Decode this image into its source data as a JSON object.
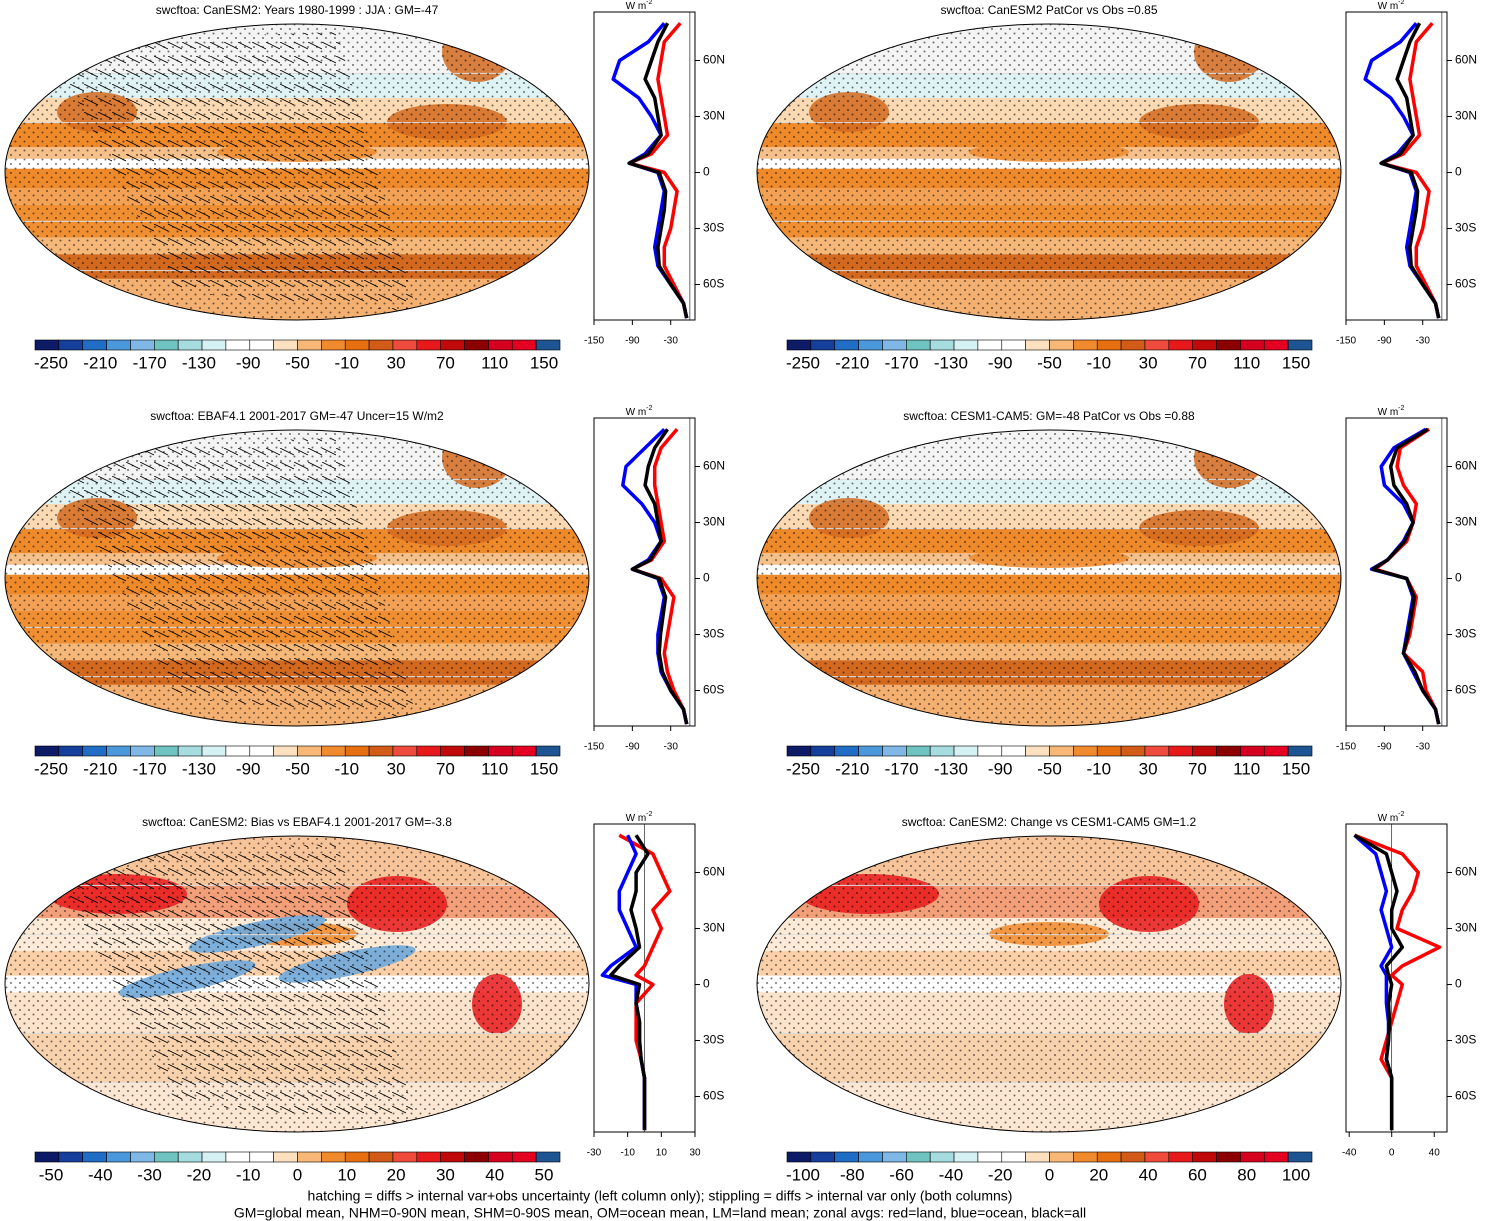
{
  "chart_data": [
    {
      "type": "line",
      "title": "swcftoa: CanESM2: Years 1980-1999 : JJA : GM=-47",
      "unit": "W m",
      "unit_sup": "-2",
      "colorbar_ticks": [
        -250,
        -210,
        -170,
        -130,
        -90,
        -50,
        -10,
        30,
        70,
        110,
        150
      ],
      "xlim": [
        -150,
        8
      ],
      "xticks": [
        -150,
        -90,
        -30
      ],
      "ylim": [
        -79,
        86
      ],
      "yticks": [
        {
          "value": 60,
          "label": "60N"
        },
        {
          "value": 30,
          "label": "30N"
        },
        0,
        {
          "value": -30,
          "label": "30S"
        },
        {
          "value": -60,
          "label": "60S"
        }
      ],
      "y": [
        80,
        70,
        60,
        50,
        40,
        30,
        20,
        10,
        5,
        0,
        -10,
        -20,
        -30,
        -40,
        -50,
        -60,
        -70,
        -78
      ],
      "series": [
        {
          "color": "#ff0000",
          "values": [
            -15,
            -40,
            -45,
            -50,
            -45,
            -40,
            -35,
            -60,
            -95,
            -40,
            -20,
            -25,
            -30,
            -40,
            -40,
            -25,
            -10,
            -5
          ]
        },
        {
          "color": "#0000ff",
          "values": [
            -40,
            -65,
            -110,
            -120,
            -80,
            -60,
            -45,
            -70,
            -95,
            -50,
            -40,
            -45,
            -50,
            -55,
            -50,
            -30,
            -10,
            -5
          ]
        },
        {
          "color": "#000000",
          "values": [
            -35,
            -50,
            -60,
            -70,
            -55,
            -50,
            -45,
            -65,
            -95,
            -48,
            -38,
            -40,
            -45,
            -50,
            -48,
            -30,
            -10,
            -5
          ]
        }
      ]
    },
    {
      "type": "line",
      "title": "swcftoa: CanESM2 PatCor vs Obs =0.85",
      "unit": "W m",
      "unit_sup": "-2",
      "colorbar_ticks": [
        -250,
        -210,
        -170,
        -130,
        -90,
        -50,
        -10,
        30,
        70,
        110,
        150
      ],
      "xlim": [
        -150,
        8
      ],
      "xticks": [
        -150,
        -90,
        -30
      ],
      "ylim": [
        -79,
        86
      ],
      "yticks": [
        {
          "value": 60,
          "label": "60N"
        },
        {
          "value": 30,
          "label": "30N"
        },
        0,
        {
          "value": -30,
          "label": "30S"
        },
        {
          "value": -60,
          "label": "60S"
        }
      ],
      "y": [
        80,
        70,
        60,
        50,
        40,
        30,
        20,
        10,
        5,
        0,
        -10,
        -20,
        -30,
        -40,
        -50,
        -60,
        -70,
        -78
      ],
      "series": [
        {
          "color": "#ff0000",
          "values": [
            -15,
            -40,
            -45,
            -50,
            -45,
            -40,
            -35,
            -60,
            -95,
            -40,
            -20,
            -25,
            -30,
            -40,
            -40,
            -25,
            -10,
            -5
          ]
        },
        {
          "color": "#0000ff",
          "values": [
            -40,
            -65,
            -110,
            -120,
            -80,
            -60,
            -45,
            -70,
            -95,
            -50,
            -40,
            -45,
            -50,
            -55,
            -50,
            -30,
            -10,
            -5
          ]
        },
        {
          "color": "#000000",
          "values": [
            -35,
            -50,
            -60,
            -70,
            -55,
            -50,
            -45,
            -65,
            -95,
            -48,
            -38,
            -40,
            -45,
            -50,
            -48,
            -30,
            -10,
            -5
          ]
        }
      ]
    },
    {
      "type": "line",
      "title": "swcftoa: EBAF4.1 2001-2017 GM=-47 Uncer=15 W/m2",
      "unit": "W m",
      "unit_sup": "-2",
      "colorbar_ticks": [
        -250,
        -210,
        -170,
        -130,
        -90,
        -50,
        -10,
        30,
        70,
        110,
        150
      ],
      "xlim": [
        -150,
        8
      ],
      "xticks": [
        -150,
        -90,
        -30
      ],
      "ylim": [
        -79,
        86
      ],
      "yticks": [
        {
          "value": 60,
          "label": "60N"
        },
        {
          "value": 30,
          "label": "30N"
        },
        0,
        {
          "value": -30,
          "label": "30S"
        },
        {
          "value": -60,
          "label": "60S"
        }
      ],
      "y": [
        80,
        70,
        60,
        50,
        40,
        30,
        20,
        10,
        5,
        0,
        -10,
        -20,
        -30,
        -40,
        -50,
        -60,
        -70,
        -78
      ],
      "series": [
        {
          "color": "#ff0000",
          "values": [
            -20,
            -45,
            -55,
            -55,
            -50,
            -45,
            -40,
            -60,
            -90,
            -45,
            -25,
            -30,
            -35,
            -40,
            -35,
            -25,
            -10,
            -5
          ]
        },
        {
          "color": "#0000ff",
          "values": [
            -40,
            -70,
            -100,
            -105,
            -75,
            -55,
            -45,
            -65,
            -90,
            -50,
            -40,
            -45,
            -50,
            -50,
            -45,
            -30,
            -10,
            -5
          ]
        },
        {
          "color": "#000000",
          "values": [
            -35,
            -55,
            -65,
            -70,
            -55,
            -50,
            -45,
            -62,
            -90,
            -48,
            -38,
            -42,
            -46,
            -48,
            -43,
            -30,
            -10,
            -5
          ]
        }
      ]
    },
    {
      "type": "line",
      "title": "swcftoa: CESM1-CAM5: GM=-48 PatCor vs Obs =0.88",
      "unit": "W m",
      "unit_sup": "-2",
      "colorbar_ticks": [
        -250,
        -210,
        -170,
        -130,
        -90,
        -50,
        -10,
        30,
        70,
        110,
        150
      ],
      "xlim": [
        -150,
        8
      ],
      "xticks": [
        -150,
        -90,
        -30
      ],
      "ylim": [
        -79,
        86
      ],
      "yticks": [
        {
          "value": 60,
          "label": "60N"
        },
        {
          "value": 30,
          "label": "30N"
        },
        0,
        {
          "value": -30,
          "label": "30S"
        },
        {
          "value": -60,
          "label": "60S"
        }
      ],
      "y": [
        80,
        70,
        60,
        50,
        40,
        30,
        20,
        10,
        5,
        0,
        -10,
        -20,
        -30,
        -40,
        -50,
        -60,
        -70,
        -78
      ],
      "series": [
        {
          "color": "#ff0000",
          "values": [
            -20,
            -65,
            -70,
            -60,
            -40,
            -45,
            -55,
            -85,
            -105,
            -55,
            -40,
            -45,
            -50,
            -60,
            -30,
            -25,
            -10,
            -5
          ]
        },
        {
          "color": "#0000ff",
          "values": [
            -25,
            -75,
            -95,
            -90,
            -60,
            -45,
            -60,
            -85,
            -110,
            -55,
            -45,
            -50,
            -55,
            -60,
            -45,
            -30,
            -10,
            -5
          ]
        },
        {
          "color": "#000000",
          "values": [
            -22,
            -70,
            -80,
            -75,
            -55,
            -45,
            -58,
            -85,
            -108,
            -55,
            -43,
            -48,
            -53,
            -60,
            -42,
            -30,
            -10,
            -5
          ]
        }
      ]
    },
    {
      "type": "line",
      "title": "swcftoa: CanESM2: Bias vs EBAF4.1 2001-2017 GM=-3.8",
      "unit": "W m",
      "unit_sup": "-2",
      "colorbar_ticks": [
        -50,
        -40,
        -30,
        -20,
        -10,
        0,
        10,
        20,
        30,
        40,
        50
      ],
      "xlim": [
        -30,
        30
      ],
      "xticks": [
        -30,
        -10,
        10,
        30
      ],
      "ylim": [
        -79,
        86
      ],
      "yticks": [
        {
          "value": 60,
          "label": "60N"
        },
        {
          "value": 30,
          "label": "30N"
        },
        0,
        {
          "value": -30,
          "label": "30S"
        },
        {
          "value": -60,
          "label": "60S"
        }
      ],
      "y": [
        80,
        70,
        60,
        50,
        40,
        30,
        20,
        10,
        5,
        0,
        -10,
        -20,
        -30,
        -40,
        -50,
        -60,
        -70,
        -78
      ],
      "series": [
        {
          "color": "#ff0000",
          "values": [
            -15,
            5,
            10,
            15,
            5,
            10,
            5,
            0,
            -5,
            5,
            -5,
            -5,
            -5,
            -2,
            0,
            0,
            0,
            0
          ]
        },
        {
          "color": "#0000ff",
          "values": [
            -10,
            -5,
            -10,
            -15,
            -15,
            -10,
            -5,
            -20,
            -25,
            -5,
            -5,
            -3,
            -3,
            -2,
            0,
            0,
            0,
            0
          ]
        },
        {
          "color": "#000000",
          "values": [
            -5,
            2,
            -5,
            -5,
            -8,
            -5,
            -3,
            -15,
            -20,
            -3,
            -5,
            -3,
            -3,
            -2,
            0,
            0,
            0,
            0
          ]
        }
      ]
    },
    {
      "type": "line",
      "title": "swcftoa: CanESM2: Change vs CESM1-CAM5 GM=1.2",
      "unit": "W m",
      "unit_sup": "-2",
      "colorbar_ticks": [
        -100,
        -80,
        -60,
        -40,
        -20,
        0,
        20,
        40,
        60,
        80,
        100
      ],
      "xlim": [
        -43,
        52
      ],
      "xticks": [
        -40,
        0,
        40
      ],
      "ylim": [
        -79,
        86
      ],
      "yticks": [
        {
          "value": 60,
          "label": "60N"
        },
        {
          "value": 30,
          "label": "30N"
        },
        0,
        {
          "value": -30,
          "label": "30S"
        },
        {
          "value": -60,
          "label": "60S"
        }
      ],
      "y": [
        80,
        70,
        60,
        50,
        40,
        30,
        20,
        10,
        5,
        0,
        -10,
        -20,
        -30,
        -40,
        -50,
        -60,
        -70,
        -78
      ],
      "series": [
        {
          "color": "#ff0000",
          "values": [
            -35,
            10,
            25,
            20,
            10,
            5,
            45,
            10,
            0,
            10,
            5,
            0,
            -5,
            -10,
            0,
            0,
            0,
            0
          ]
        },
        {
          "color": "#0000ff",
          "values": [
            -35,
            -15,
            -10,
            -5,
            -10,
            -5,
            0,
            -10,
            -5,
            -5,
            -5,
            -3,
            -3,
            -5,
            0,
            0,
            0,
            0
          ]
        },
        {
          "color": "#000000",
          "values": [
            -35,
            -5,
            0,
            5,
            0,
            0,
            10,
            -5,
            -3,
            0,
            -3,
            -2,
            -3,
            -5,
            0,
            0,
            0,
            0
          ]
        }
      ]
    }
  ],
  "colorbar_colors": [
    "#0d1a66",
    "#153f9b",
    "#1f6dc4",
    "#4a97db",
    "#7fb7e6",
    "#6fc3c0",
    "#a6dce0",
    "#d6f1f3",
    "#ffffff",
    "#ffffff",
    "#fde0c0",
    "#f7b877",
    "#f08a2c",
    "#e66f11",
    "#d15b17",
    "#ee4b3c",
    "#e8191b",
    "#c00a0a",
    "#8b0000",
    "#d5001d",
    "#e30021",
    "#1d5592"
  ],
  "notes": [
    "hatching = diffs > internal var+obs uncertainty (left column only); stippling = diffs > internal var only (both columns)",
    "GM=global mean, NHM=0-90N mean, SHM=0-90S mean, OM=ocean mean, LM=land mean; zonal avgs: red=land, blue=ocean, black=all"
  ]
}
